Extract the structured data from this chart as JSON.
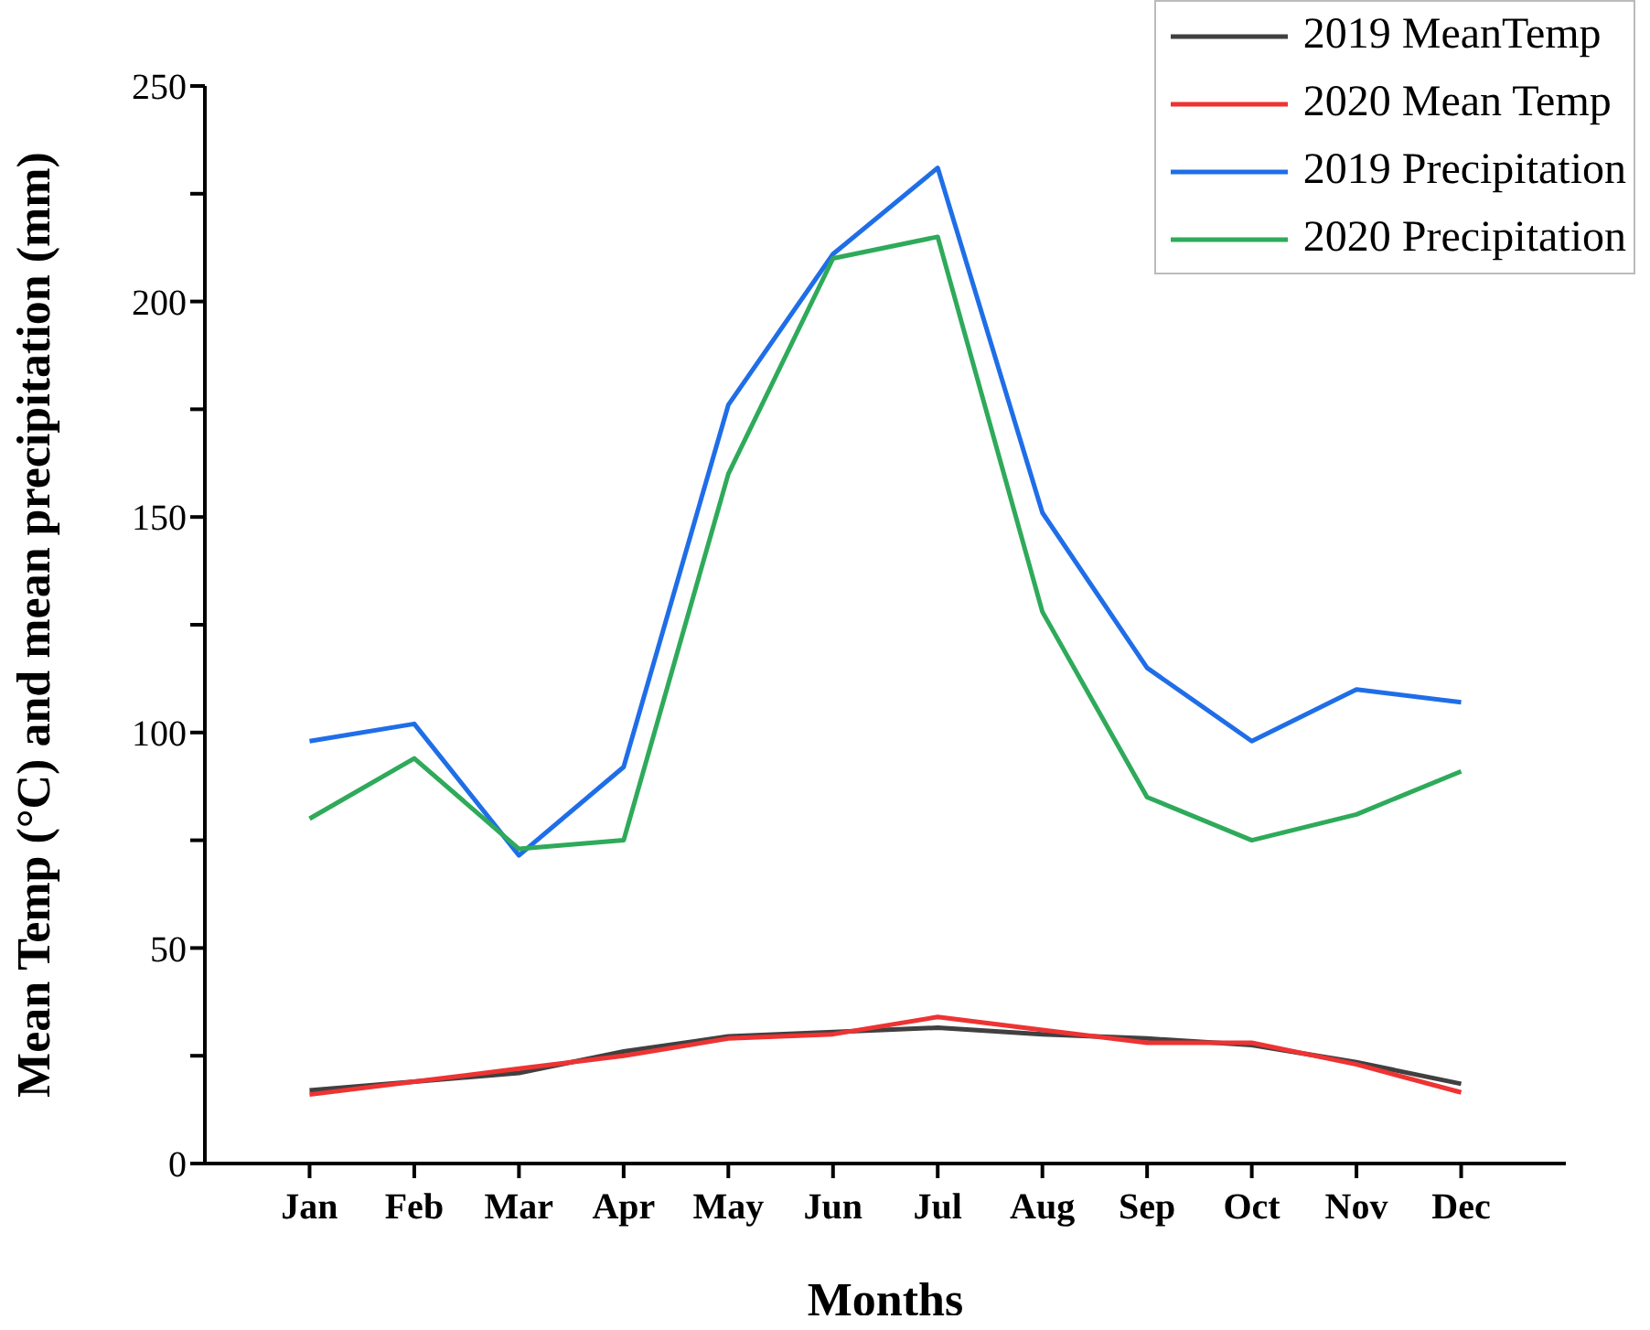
{
  "chart_data": {
    "type": "line",
    "xlabel": "Months",
    "ylabel": "Mean Temp (°C) and mean precipitation (mm)",
    "categories": [
      "Jan",
      "Feb",
      "Mar",
      "Apr",
      "May",
      "Jun",
      "Jul",
      "Aug",
      "Sep",
      "Oct",
      "Nov",
      "Dec"
    ],
    "series": [
      {
        "name": "2019 MeanTemp",
        "color": "#404040",
        "values": [
          17,
          19,
          21,
          26,
          29.5,
          30.5,
          31.5,
          30,
          29,
          27.5,
          23.5,
          18.5
        ]
      },
      {
        "name": "2020 Mean Temp",
        "color": "#ee3333",
        "values": [
          16,
          19,
          22,
          25,
          29,
          30,
          34,
          31,
          28,
          28,
          23,
          16.5
        ]
      },
      {
        "name": "2019 Precipitation",
        "color": "#1f6ee8",
        "values": [
          98,
          102,
          71.5,
          92,
          176,
          211,
          231,
          151,
          115,
          98,
          110,
          107
        ]
      },
      {
        "name": "2020 Precipitation",
        "color": "#2eaa5a",
        "values": [
          80,
          94,
          73,
          75,
          160,
          210,
          215,
          128,
          85,
          75,
          81,
          91
        ]
      }
    ],
    "ylim": [
      0,
      250
    ],
    "yticks": [
      0,
      {
        "value": 25,
        "label": null
      },
      50,
      {
        "value": 75,
        "label": null
      },
      100,
      {
        "value": 125,
        "label": null
      },
      150,
      {
        "value": 175,
        "label": null
      },
      200,
      {
        "value": 225,
        "label": null
      },
      250
    ],
    "grid": false,
    "legend": "top right",
    "marker": "none",
    "line_style": "solid"
  }
}
